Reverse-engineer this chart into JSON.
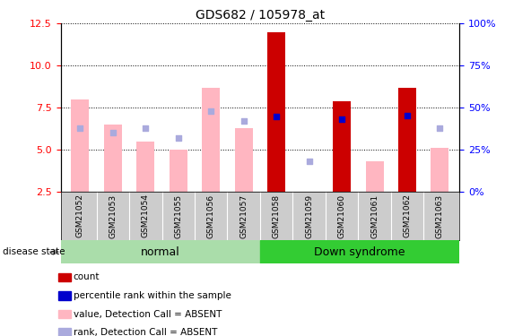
{
  "title": "GDS682 / 105978_at",
  "samples": [
    "GSM21052",
    "GSM21053",
    "GSM21054",
    "GSM21055",
    "GSM21056",
    "GSM21057",
    "GSM21058",
    "GSM21059",
    "GSM21060",
    "GSM21061",
    "GSM21062",
    "GSM21063"
  ],
  "groups": [
    "normal",
    "normal",
    "normal",
    "normal",
    "normal",
    "normal",
    "Down syndrome",
    "Down syndrome",
    "Down syndrome",
    "Down syndrome",
    "Down syndrome",
    "Down syndrome"
  ],
  "value_bars": [
    8.0,
    6.5,
    5.5,
    5.0,
    8.7,
    6.3,
    12.0,
    2.5,
    7.9,
    4.3,
    8.7,
    5.1
  ],
  "rank_dots_left_scale": [
    6.3,
    6.0,
    6.3,
    5.7,
    7.3,
    6.7,
    6.95,
    4.3,
    6.8,
    null,
    7.0,
    6.3
  ],
  "is_absent": [
    true,
    true,
    true,
    true,
    true,
    true,
    false,
    true,
    false,
    true,
    false,
    true
  ],
  "ylim_left": [
    2.5,
    12.5
  ],
  "ylim_right": [
    0,
    100
  ],
  "yticks_left": [
    2.5,
    5.0,
    7.5,
    10.0,
    12.5
  ],
  "yticks_right": [
    0,
    25,
    50,
    75,
    100
  ],
  "ytick_labels_right": [
    "0%",
    "25%",
    "50%",
    "75%",
    "100%"
  ],
  "bar_color_absent": "#FFB6C1",
  "bar_color_present": "#CC0000",
  "dot_color_absent": "#AAAADD",
  "dot_color_present": "#0000CC",
  "normal_group_color": "#AADDAA",
  "down_group_color": "#33CC33",
  "sample_label_bg": "#CCCCCC",
  "legend_items": [
    {
      "label": "count",
      "color": "#CC0000"
    },
    {
      "label": "percentile rank within the sample",
      "color": "#0000CC"
    },
    {
      "label": "value, Detection Call = ABSENT",
      "color": "#FFB6C1"
    },
    {
      "label": "rank, Detection Call = ABSENT",
      "color": "#AAAADD"
    }
  ]
}
